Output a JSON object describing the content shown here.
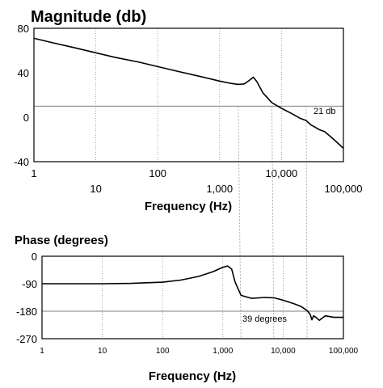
{
  "chart_data": [
    {
      "type": "line",
      "title": "Magnitude (db)",
      "xlabel": "Frequency (Hz)",
      "ylabel": "",
      "xscale": "log",
      "xlim": [
        1,
        100000
      ],
      "ylim": [
        -40,
        80
      ],
      "grid": true,
      "x_ticks": [
        1,
        10,
        100,
        1000,
        10000,
        100000
      ],
      "x_tick_labels": [
        "1",
        "10",
        "100",
        "1,000",
        "10,000",
        "100,000"
      ],
      "y_ticks": [
        -40,
        0,
        40,
        80
      ],
      "y_tick_labels": [
        "-40",
        "0",
        "40",
        "80"
      ],
      "reference_line": 10,
      "annotation": "21 db",
      "series": [
        {
          "x": [
            1,
            2,
            5,
            10,
            20,
            50,
            100,
            200,
            500,
            1000,
            1500,
            2000,
            2500,
            3000,
            3500,
            4000,
            5000,
            7000,
            10000,
            15000,
            20000,
            25000,
            30000,
            35000,
            40000,
            50000,
            70000,
            100000
          ],
          "values": [
            71,
            67,
            62,
            58,
            54,
            49.5,
            45.5,
            41.5,
            36.5,
            32.5,
            30.5,
            29.5,
            30,
            33,
            36,
            32,
            22,
            13,
            8,
            3,
            -1,
            -3,
            -7,
            -9,
            -11,
            -13,
            -20,
            -28
          ]
        }
      ]
    },
    {
      "type": "line",
      "title": "Phase (degrees)",
      "xlabel": "Frequency (Hz)",
      "ylabel": "",
      "xscale": "log",
      "xlim": [
        1,
        100000
      ],
      "ylim": [
        -270,
        0
      ],
      "grid": true,
      "x_ticks": [
        1,
        10,
        100,
        1000,
        10000,
        100000
      ],
      "x_tick_labels": [
        "1",
        "10",
        "100",
        "1,000",
        "10,000",
        "100,000"
      ],
      "y_ticks": [
        0,
        -90,
        -180,
        -270
      ],
      "y_tick_labels": [
        "0",
        "-90",
        "-180",
        "-270"
      ],
      "reference_line": -180,
      "annotation": "39 degrees",
      "series": [
        {
          "x": [
            1,
            10,
            30,
            100,
            200,
            400,
            700,
            1000,
            1200,
            1400,
            1600,
            2000,
            3000,
            5000,
            7000,
            10000,
            15000,
            20000,
            25000,
            28000,
            30000,
            32000,
            35000,
            40000,
            50000,
            70000,
            100000
          ],
          "values": [
            -90,
            -90,
            -89,
            -85,
            -78,
            -66,
            -50,
            -36,
            -32,
            -42,
            -85,
            -128,
            -138,
            -135,
            -136,
            -144,
            -155,
            -165,
            -178,
            -190,
            -208,
            -195,
            -200,
            -210,
            -195,
            -200,
            -200
          ]
        }
      ]
    }
  ]
}
